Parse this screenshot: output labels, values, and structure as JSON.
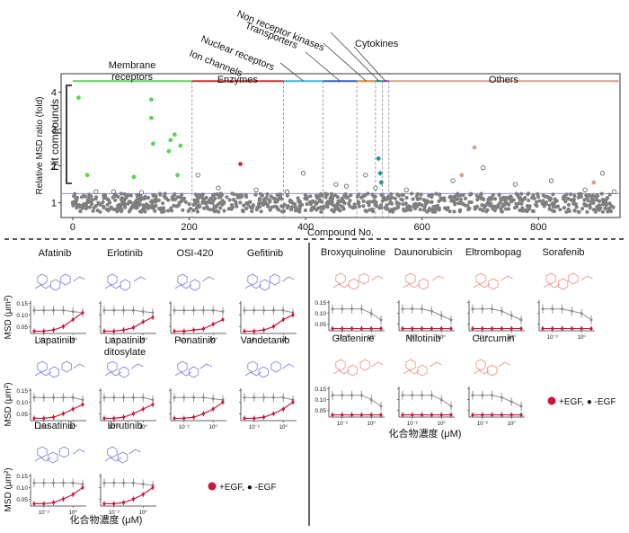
{
  "chart_data": [
    {
      "type": "scatter",
      "title": "",
      "xlabel": "Compound No.",
      "ylabel": "Relative MSD ratio (fold)",
      "bracket_label": "Hit compounds",
      "xlim": [
        -20,
        940
      ],
      "ylim": [
        0.6,
        4.5
      ],
      "x_ticks": [
        "0",
        "200",
        "400",
        "600",
        "800"
      ],
      "x_tick_values": [
        0,
        200,
        400,
        600,
        800
      ],
      "y_ticks": [
        "1",
        "2",
        "3",
        "4"
      ],
      "y_tick_values": [
        1,
        2,
        3,
        4
      ],
      "hit_threshold": 1.25,
      "categories": [
        {
          "label": "Membrane\nreceptors",
          "start": 0,
          "end": 205,
          "color": "#5fd35a"
        },
        {
          "label": "Enzymes",
          "start": 205,
          "end": 362,
          "color": "#d62c2c"
        },
        {
          "label": "Ion channels",
          "start": 362,
          "end": 430,
          "color": "#2fbde0"
        },
        {
          "label": "Nuclear receptors",
          "start": 430,
          "end": 488,
          "color": "#2f5fd6"
        },
        {
          "label": "Transporters",
          "start": 488,
          "end": 520,
          "color": "#e08a2c"
        },
        {
          "label": "Non receptor kinases",
          "start": 520,
          "end": 532,
          "color": "#1a9a8c"
        },
        {
          "label": "Cytokines",
          "start": 532,
          "end": 543,
          "color": "#8a3fc9"
        },
        {
          "label": "Others",
          "start": 543,
          "end": 940,
          "color": "#d9a08a"
        }
      ],
      "hits": [
        {
          "x": 10,
          "y": 3.85,
          "color": "#5fd35a"
        },
        {
          "x": 135,
          "y": 3.8,
          "color": "#5fd35a"
        },
        {
          "x": 135,
          "y": 3.3,
          "color": "#5fd35a"
        },
        {
          "x": 175,
          "y": 2.85,
          "color": "#5fd35a"
        },
        {
          "x": 168,
          "y": 2.7,
          "color": "#5fd35a"
        },
        {
          "x": 185,
          "y": 2.55,
          "color": "#5fd35a"
        },
        {
          "x": 138,
          "y": 2.6,
          "color": "#5fd35a"
        },
        {
          "x": 165,
          "y": 2.4,
          "color": "#5fd35a"
        },
        {
          "x": 25,
          "y": 1.75,
          "color": "#5fd35a"
        },
        {
          "x": 105,
          "y": 1.7,
          "color": "#5fd35a"
        },
        {
          "x": 180,
          "y": 1.75,
          "color": "#5fd35a"
        },
        {
          "x": 288,
          "y": 2.05,
          "color": "#d62c2c"
        },
        {
          "x": 525,
          "y": 2.2,
          "color": "#1a9a8c"
        },
        {
          "x": 528,
          "y": 1.8,
          "color": "#1a9a8c"
        },
        {
          "x": 530,
          "y": 1.55,
          "color": "#1a9a8c"
        },
        {
          "x": 690,
          "y": 2.5,
          "color": "#d9a08a"
        },
        {
          "x": 668,
          "y": 1.75,
          "color": "#d9a08a"
        },
        {
          "x": 895,
          "y": 1.55,
          "color": "#d9a08a"
        }
      ],
      "open_points": [
        {
          "x": 40,
          "y": 1.3
        },
        {
          "x": 70,
          "y": 1.3
        },
        {
          "x": 118,
          "y": 1.28
        },
        {
          "x": 215,
          "y": 1.75
        },
        {
          "x": 250,
          "y": 1.4
        },
        {
          "x": 315,
          "y": 1.35
        },
        {
          "x": 368,
          "y": 1.3
        },
        {
          "x": 396,
          "y": 1.8
        },
        {
          "x": 452,
          "y": 1.5
        },
        {
          "x": 470,
          "y": 1.45
        },
        {
          "x": 503,
          "y": 1.75
        },
        {
          "x": 520,
          "y": 1.4
        },
        {
          "x": 573,
          "y": 1.35
        },
        {
          "x": 653,
          "y": 1.6
        },
        {
          "x": 705,
          "y": 1.95
        },
        {
          "x": 760,
          "y": 1.5
        },
        {
          "x": 822,
          "y": 1.6
        },
        {
          "x": 880,
          "y": 1.35
        },
        {
          "x": 910,
          "y": 1.8
        },
        {
          "x": 930,
          "y": 1.3
        }
      ],
      "background_band": {
        "count": 900,
        "y_min": 0.75,
        "y_max": 1.25,
        "color": "#7f7f7f"
      }
    },
    {
      "type": "line",
      "panel": "hit-kinase-inhibitors-left",
      "x_ticks": [
        "10⁻²",
        "10⁰"
      ],
      "y_ticks": [
        "0.15",
        "0.10",
        "0.05"
      ],
      "y_tick_values": [
        0.15,
        0.1,
        0.05
      ],
      "ylabel": "MSD (μm²)",
      "xlabel": "化合物濃度 (μM)",
      "legend": "+EGF, ● -EGF",
      "compounds": [
        {
          "name": "Afatinib",
          "egf_plus": [
            0.03,
            0.03,
            0.035,
            0.05,
            0.08,
            0.11
          ],
          "egf_minus": [
            0.12,
            0.12,
            0.12,
            0.12,
            0.115,
            0.11
          ]
        },
        {
          "name": "Erlotinib",
          "egf_plus": [
            0.03,
            0.03,
            0.035,
            0.045,
            0.07,
            0.09
          ],
          "egf_minus": [
            0.12,
            0.12,
            0.12,
            0.12,
            0.115,
            0.11
          ]
        },
        {
          "name": "OSI-420",
          "egf_plus": [
            0.03,
            0.03,
            0.035,
            0.04,
            0.06,
            0.08
          ],
          "egf_minus": [
            0.12,
            0.12,
            0.12,
            0.12,
            0.12,
            0.115
          ]
        },
        {
          "name": "Gefitinib",
          "egf_plus": [
            0.03,
            0.03,
            0.035,
            0.05,
            0.08,
            0.1
          ],
          "egf_minus": [
            0.12,
            0.12,
            0.12,
            0.12,
            0.12,
            0.11
          ]
        },
        {
          "name": "Lapatinib",
          "egf_plus": [
            0.03,
            0.03,
            0.035,
            0.05,
            0.07,
            0.09
          ],
          "egf_minus": [
            0.12,
            0.12,
            0.12,
            0.12,
            0.12,
            0.11
          ]
        },
        {
          "name": "Lapatinib\nditosylate",
          "egf_plus": [
            0.03,
            0.03,
            0.035,
            0.05,
            0.07,
            0.09
          ],
          "egf_minus": [
            0.12,
            0.12,
            0.12,
            0.12,
            0.12,
            0.11
          ]
        },
        {
          "name": "Ponatinib",
          "egf_plus": [
            0.03,
            0.03,
            0.035,
            0.05,
            0.07,
            0.1
          ],
          "egf_minus": [
            0.12,
            0.12,
            0.12,
            0.12,
            0.115,
            0.11
          ]
        },
        {
          "name": "Vandetanib",
          "egf_plus": [
            0.03,
            0.03,
            0.035,
            0.05,
            0.07,
            0.1
          ],
          "egf_minus": [
            0.12,
            0.12,
            0.12,
            0.12,
            0.12,
            0.11
          ]
        },
        {
          "name": "Dasatinib",
          "egf_plus": [
            0.03,
            0.03,
            0.035,
            0.05,
            0.07,
            0.1
          ],
          "egf_minus": [
            0.12,
            0.12,
            0.12,
            0.12,
            0.12,
            0.115
          ]
        },
        {
          "name": "Ibrutinib",
          "egf_plus": [
            0.03,
            0.03,
            0.035,
            0.05,
            0.07,
            0.1
          ],
          "egf_minus": [
            0.12,
            0.12,
            0.12,
            0.12,
            0.115,
            0.11
          ]
        }
      ]
    },
    {
      "type": "line",
      "panel": "hit-other-compounds-right",
      "x_ticks": [
        "10⁻²",
        "10⁰"
      ],
      "y_ticks": [
        "0.15",
        "0.10",
        "0.05"
      ],
      "y_tick_values": [
        0.15,
        0.1,
        0.05
      ],
      "ylabel": "MSD (μm²)",
      "xlabel": "化合物濃度 (μM)",
      "legend": "+EGF, ● -EGF",
      "compounds": [
        {
          "name": "Broxyquinoline",
          "egf_plus": [
            0.03,
            0.03,
            0.03,
            0.03,
            0.03,
            0.03
          ],
          "egf_minus": [
            0.12,
            0.12,
            0.12,
            0.12,
            0.1,
            0.07
          ]
        },
        {
          "name": "Daunorubicin",
          "egf_plus": [
            0.03,
            0.03,
            0.03,
            0.03,
            0.03,
            0.03
          ],
          "egf_minus": [
            0.12,
            0.12,
            0.12,
            0.11,
            0.09,
            0.07
          ]
        },
        {
          "name": "Eltrombopag",
          "egf_plus": [
            0.03,
            0.03,
            0.03,
            0.03,
            0.03,
            0.03
          ],
          "egf_minus": [
            0.12,
            0.12,
            0.12,
            0.11,
            0.09,
            0.07
          ]
        },
        {
          "name": "Sorafenib",
          "egf_plus": [
            0.03,
            0.03,
            0.03,
            0.03,
            0.03,
            0.03
          ],
          "egf_minus": [
            0.12,
            0.12,
            0.12,
            0.11,
            0.1,
            0.07
          ]
        },
        {
          "name": "Glafenine",
          "egf_plus": [
            0.03,
            0.03,
            0.03,
            0.03,
            0.03,
            0.03
          ],
          "egf_minus": [
            0.12,
            0.12,
            0.12,
            0.12,
            0.1,
            0.07
          ]
        },
        {
          "name": "Nilotinib",
          "egf_plus": [
            0.03,
            0.03,
            0.03,
            0.03,
            0.03,
            0.03
          ],
          "egf_minus": [
            0.12,
            0.12,
            0.12,
            0.12,
            0.1,
            0.07
          ]
        },
        {
          "name": "Curcumin",
          "egf_plus": [
            0.03,
            0.03,
            0.03,
            0.03,
            0.03,
            0.03
          ],
          "egf_minus": [
            0.12,
            0.12,
            0.12,
            0.11,
            0.09,
            0.07
          ]
        }
      ]
    }
  ],
  "colors": {
    "egf_plus": "#c8173c",
    "egf_minus": "#8c8c8c",
    "kinase_structure": "#7c7ee0",
    "other_structure": "#ee8f86"
  }
}
